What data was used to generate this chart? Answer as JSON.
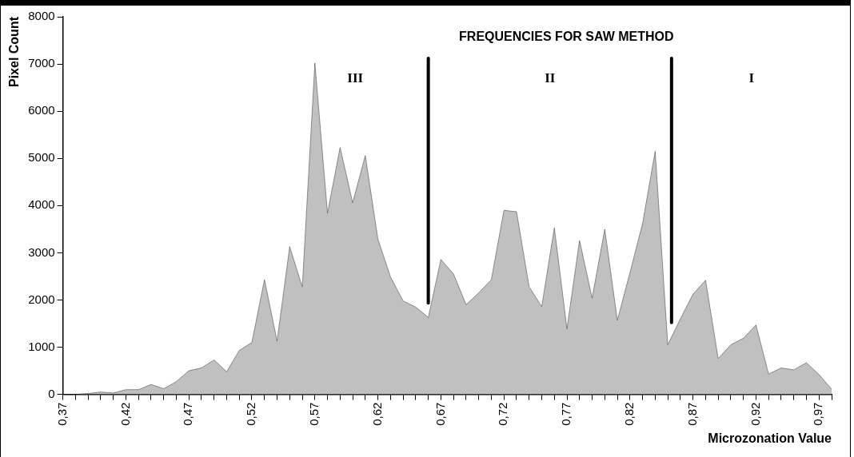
{
  "chart_data": {
    "type": "area",
    "title": "FREQUENCIES FOR SAW METHOD",
    "xlabel": "Microzonation Value",
    "ylabel": "Pixel Count",
    "x": [
      0.37,
      0.38,
      0.39,
      0.4,
      0.41,
      0.42,
      0.43,
      0.44,
      0.45,
      0.46,
      0.47,
      0.48,
      0.49,
      0.5,
      0.51,
      0.52,
      0.53,
      0.54,
      0.55,
      0.56,
      0.57,
      0.58,
      0.59,
      0.6,
      0.61,
      0.62,
      0.63,
      0.64,
      0.65,
      0.66,
      0.67,
      0.68,
      0.69,
      0.7,
      0.71,
      0.72,
      0.73,
      0.74,
      0.75,
      0.76,
      0.77,
      0.78,
      0.79,
      0.8,
      0.81,
      0.82,
      0.83,
      0.84,
      0.85,
      0.86,
      0.87,
      0.88,
      0.89,
      0.9,
      0.91,
      0.92,
      0.93,
      0.94,
      0.95,
      0.96,
      0.97,
      0.98
    ],
    "series": [
      {
        "color": "#c0c0c0",
        "values": [
          0,
          0,
          20,
          50,
          30,
          100,
          100,
          210,
          120,
          270,
          500,
          560,
          730,
          480,
          930,
          1100,
          2430,
          1130,
          3130,
          2280,
          7020,
          3840,
          5230,
          4060,
          5060,
          3290,
          2490,
          1980,
          1850,
          1630,
          2860,
          2550,
          1900,
          2150,
          2430,
          3900,
          3870,
          2280,
          1860,
          3530,
          1390,
          3260,
          2040,
          3500,
          1570,
          2580,
          3620,
          5150,
          1050,
          1600,
          2120,
          2420,
          760,
          1050,
          1190,
          1470,
          430,
          560,
          520,
          670,
          420,
          110
        ]
      }
    ],
    "xlim": [
      0.37,
      0.98
    ],
    "xticks": [
      {
        "value": 0.37,
        "label": "0,37"
      },
      {
        "value": 0.38,
        "label": null
      },
      {
        "value": 0.39,
        "label": null
      },
      {
        "value": 0.4,
        "label": null
      },
      {
        "value": 0.41,
        "label": null
      },
      {
        "value": 0.42,
        "label": "0,42"
      },
      {
        "value": 0.43,
        "label": null
      },
      {
        "value": 0.44,
        "label": null
      },
      {
        "value": 0.45,
        "label": null
      },
      {
        "value": 0.46,
        "label": null
      },
      {
        "value": 0.47,
        "label": "0,47"
      },
      {
        "value": 0.48,
        "label": null
      },
      {
        "value": 0.49,
        "label": null
      },
      {
        "value": 0.5,
        "label": null
      },
      {
        "value": 0.51,
        "label": null
      },
      {
        "value": 0.52,
        "label": "0,52"
      },
      {
        "value": 0.53,
        "label": null
      },
      {
        "value": 0.54,
        "label": null
      },
      {
        "value": 0.55,
        "label": null
      },
      {
        "value": 0.56,
        "label": null
      },
      {
        "value": 0.57,
        "label": "0,57"
      },
      {
        "value": 0.58,
        "label": null
      },
      {
        "value": 0.59,
        "label": null
      },
      {
        "value": 0.6,
        "label": null
      },
      {
        "value": 0.61,
        "label": null
      },
      {
        "value": 0.62,
        "label": "0,62"
      },
      {
        "value": 0.63,
        "label": null
      },
      {
        "value": 0.64,
        "label": null
      },
      {
        "value": 0.65,
        "label": null
      },
      {
        "value": 0.66,
        "label": null
      },
      {
        "value": 0.67,
        "label": "0,67"
      },
      {
        "value": 0.68,
        "label": null
      },
      {
        "value": 0.69,
        "label": null
      },
      {
        "value": 0.7,
        "label": null
      },
      {
        "value": 0.71,
        "label": null
      },
      {
        "value": 0.72,
        "label": "0,72"
      },
      {
        "value": 0.73,
        "label": null
      },
      {
        "value": 0.74,
        "label": null
      },
      {
        "value": 0.75,
        "label": null
      },
      {
        "value": 0.76,
        "label": null
      },
      {
        "value": 0.77,
        "label": "0,77"
      },
      {
        "value": 0.78,
        "label": null
      },
      {
        "value": 0.79,
        "label": null
      },
      {
        "value": 0.8,
        "label": null
      },
      {
        "value": 0.81,
        "label": null
      },
      {
        "value": 0.82,
        "label": "0,82"
      },
      {
        "value": 0.83,
        "label": null
      },
      {
        "value": 0.84,
        "label": null
      },
      {
        "value": 0.85,
        "label": null
      },
      {
        "value": 0.86,
        "label": null
      },
      {
        "value": 0.87,
        "label": "0,87"
      },
      {
        "value": 0.88,
        "label": null
      },
      {
        "value": 0.89,
        "label": null
      },
      {
        "value": 0.9,
        "label": null
      },
      {
        "value": 0.91,
        "label": null
      },
      {
        "value": 0.92,
        "label": "0,92"
      },
      {
        "value": 0.93,
        "label": null
      },
      {
        "value": 0.94,
        "label": null
      },
      {
        "value": 0.95,
        "label": null
      },
      {
        "value": 0.96,
        "label": null
      },
      {
        "value": 0.97,
        "label": "0,97"
      },
      {
        "value": 0.98,
        "label": null
      }
    ],
    "ylim": [
      0,
      8000
    ],
    "yticks": [
      0,
      1000,
      2000,
      3000,
      4000,
      5000,
      6000,
      7000,
      8000
    ],
    "ref_lines": [
      {
        "axis": "x",
        "value": 0.66,
        "color": "#000000"
      },
      {
        "axis": "x",
        "value": 0.853,
        "color": "#000000"
      }
    ],
    "annotations": [
      "III",
      "II",
      "I"
    ],
    "grid": false,
    "legend": false
  }
}
